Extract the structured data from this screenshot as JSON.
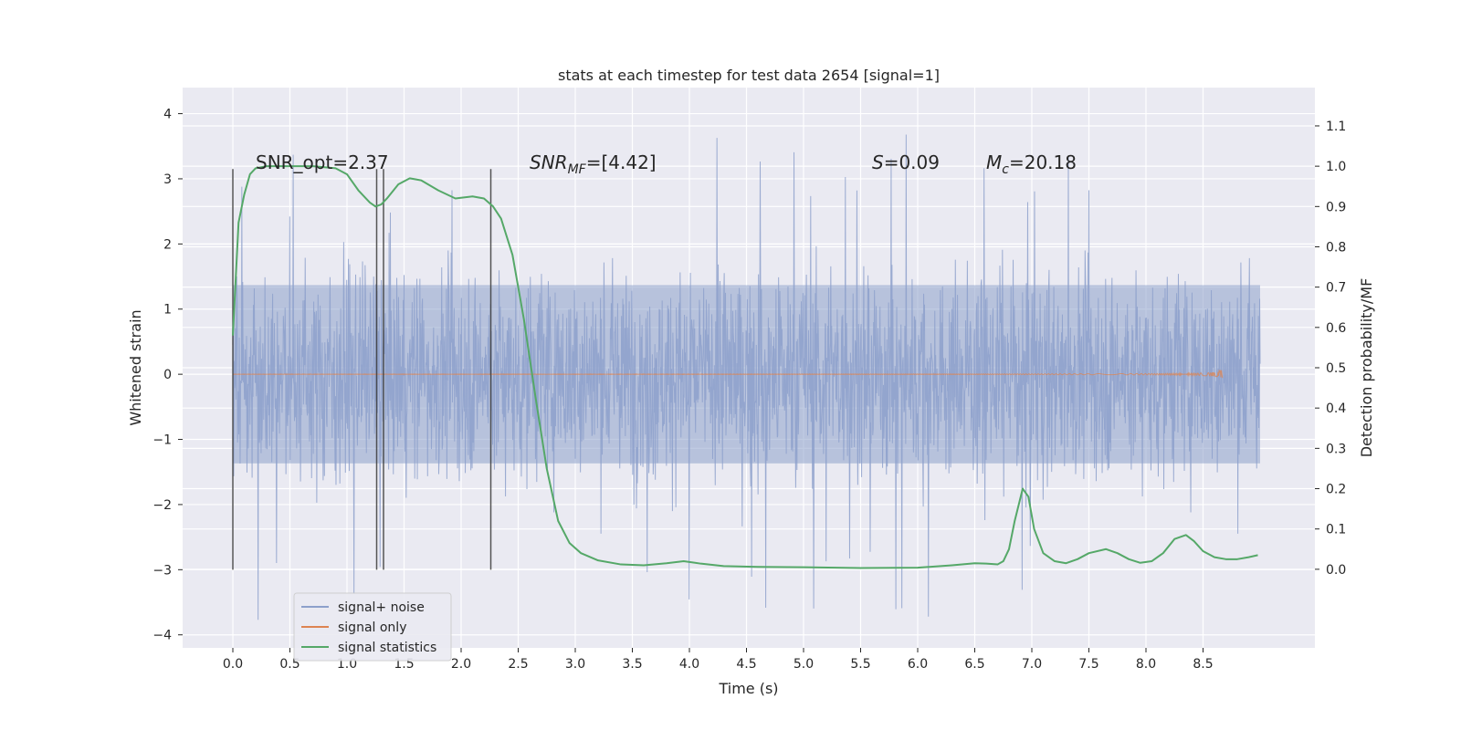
{
  "chart_data": {
    "type": "line",
    "title": "stats at each timestep for test data 2654 [signal=1]",
    "xlabel": "Time (s)",
    "ylabel_left": "Whitened strain",
    "ylabel_right": "Detection probability/MF",
    "xlim": [
      -0.44,
      9.48
    ],
    "ylim_left": [
      -4.2,
      4.4
    ],
    "ylim_right": [
      -0.195,
      1.195
    ],
    "x_ticks": [
      0.0,
      0.5,
      1.0,
      1.5,
      2.0,
      2.5,
      3.0,
      3.5,
      4.0,
      4.5,
      5.0,
      5.5,
      6.0,
      6.5,
      7.0,
      7.5,
      8.0,
      8.5
    ],
    "x_tick_labels": [
      "0.0",
      "0.5",
      "1.0",
      "1.5",
      "2.0",
      "2.5",
      "3.0",
      "3.5",
      "4.0",
      "4.5",
      "5.0",
      "5.5",
      "6.0",
      "6.5",
      "7.0",
      "7.5",
      "8.0",
      "8.5"
    ],
    "y_ticks_left": [
      -4,
      -3,
      -2,
      -1,
      0,
      1,
      2,
      3,
      4
    ],
    "y_tick_labels_left": [
      "−4",
      "−3",
      "−2",
      "−1",
      "0",
      "1",
      "2",
      "3",
      "4"
    ],
    "y_ticks_right": [
      0.0,
      0.1,
      0.2,
      0.3,
      0.4,
      0.5,
      0.6,
      0.7,
      0.8,
      0.9,
      1.0,
      1.1
    ],
    "y_tick_labels_right": [
      "0.0",
      "0.1",
      "0.2",
      "0.3",
      "0.4",
      "0.5",
      "0.6",
      "0.7",
      "0.8",
      "0.9",
      "1.0",
      "1.1"
    ],
    "grid": true,
    "legend_position": "lower-left",
    "annotations": [
      {
        "text": "SNR_opt=2.37",
        "x": 0.2,
        "y": 3.15
      },
      {
        "text_prefix": "SNR",
        "text_sub": "MF",
        "text_suffix": "=[4.42]",
        "x": 2.6,
        "y": 3.15
      },
      {
        "text_prefix": "S",
        "text_sub": "",
        "text_suffix": "=0.09",
        "x": 5.6,
        "y": 3.15
      },
      {
        "text_prefix": "M",
        "text_sub": "c",
        "text_suffix": "=20.18",
        "x": 6.6,
        "y": 3.15
      }
    ],
    "vertical_markers": {
      "x": [
        0.0,
        1.26,
        1.32,
        2.26
      ],
      "ymin": -3.0,
      "ymax": 3.15
    },
    "series": [
      {
        "name": "signal+ noise",
        "axis": "left",
        "color": "#8da0cb",
        "style": "noise",
        "x_range": [
          0.0,
          9.0
        ],
        "core_amplitude": 1.9,
        "peak_max": 4.0,
        "peak_min": -3.85
      },
      {
        "name": "signal only",
        "axis": "left",
        "color": "#dd8452",
        "style": "chirp",
        "x_range": [
          0.0,
          8.67
        ],
        "peak_amplitude": 0.45
      },
      {
        "name": "signal statistics",
        "axis": "right",
        "color": "#55a868",
        "style": "line",
        "x": [
          0.0,
          0.05,
          0.1,
          0.15,
          0.2,
          0.3,
          0.5,
          0.7,
          0.9,
          1.0,
          1.05,
          1.1,
          1.2,
          1.25,
          1.3,
          1.35,
          1.45,
          1.55,
          1.65,
          1.8,
          1.95,
          2.1,
          2.2,
          2.28,
          2.35,
          2.45,
          2.55,
          2.65,
          2.75,
          2.85,
          2.95,
          3.05,
          3.2,
          3.4,
          3.6,
          3.8,
          3.95,
          4.1,
          4.3,
          4.6,
          5.0,
          5.5,
          6.0,
          6.3,
          6.5,
          6.6,
          6.7,
          6.75,
          6.8,
          6.85,
          6.92,
          6.97,
          7.02,
          7.1,
          7.2,
          7.3,
          7.4,
          7.5,
          7.65,
          7.75,
          7.85,
          7.95,
          8.05,
          8.15,
          8.25,
          8.35,
          8.42,
          8.5,
          8.6,
          8.7,
          8.8,
          8.9,
          8.98
        ],
        "y": [
          0.58,
          0.86,
          0.93,
          0.98,
          0.995,
          1.0,
          1.0,
          1.0,
          0.995,
          0.98,
          0.96,
          0.94,
          0.91,
          0.9,
          0.905,
          0.92,
          0.955,
          0.97,
          0.965,
          0.94,
          0.92,
          0.925,
          0.92,
          0.9,
          0.87,
          0.78,
          0.62,
          0.43,
          0.25,
          0.12,
          0.065,
          0.04,
          0.022,
          0.012,
          0.01,
          0.015,
          0.02,
          0.014,
          0.008,
          0.006,
          0.005,
          0.003,
          0.004,
          0.01,
          0.015,
          0.014,
          0.012,
          0.02,
          0.05,
          0.12,
          0.2,
          0.18,
          0.1,
          0.04,
          0.02,
          0.015,
          0.025,
          0.04,
          0.05,
          0.04,
          0.025,
          0.016,
          0.02,
          0.04,
          0.075,
          0.085,
          0.07,
          0.045,
          0.03,
          0.025,
          0.025,
          0.03,
          0.035
        ]
      }
    ]
  }
}
